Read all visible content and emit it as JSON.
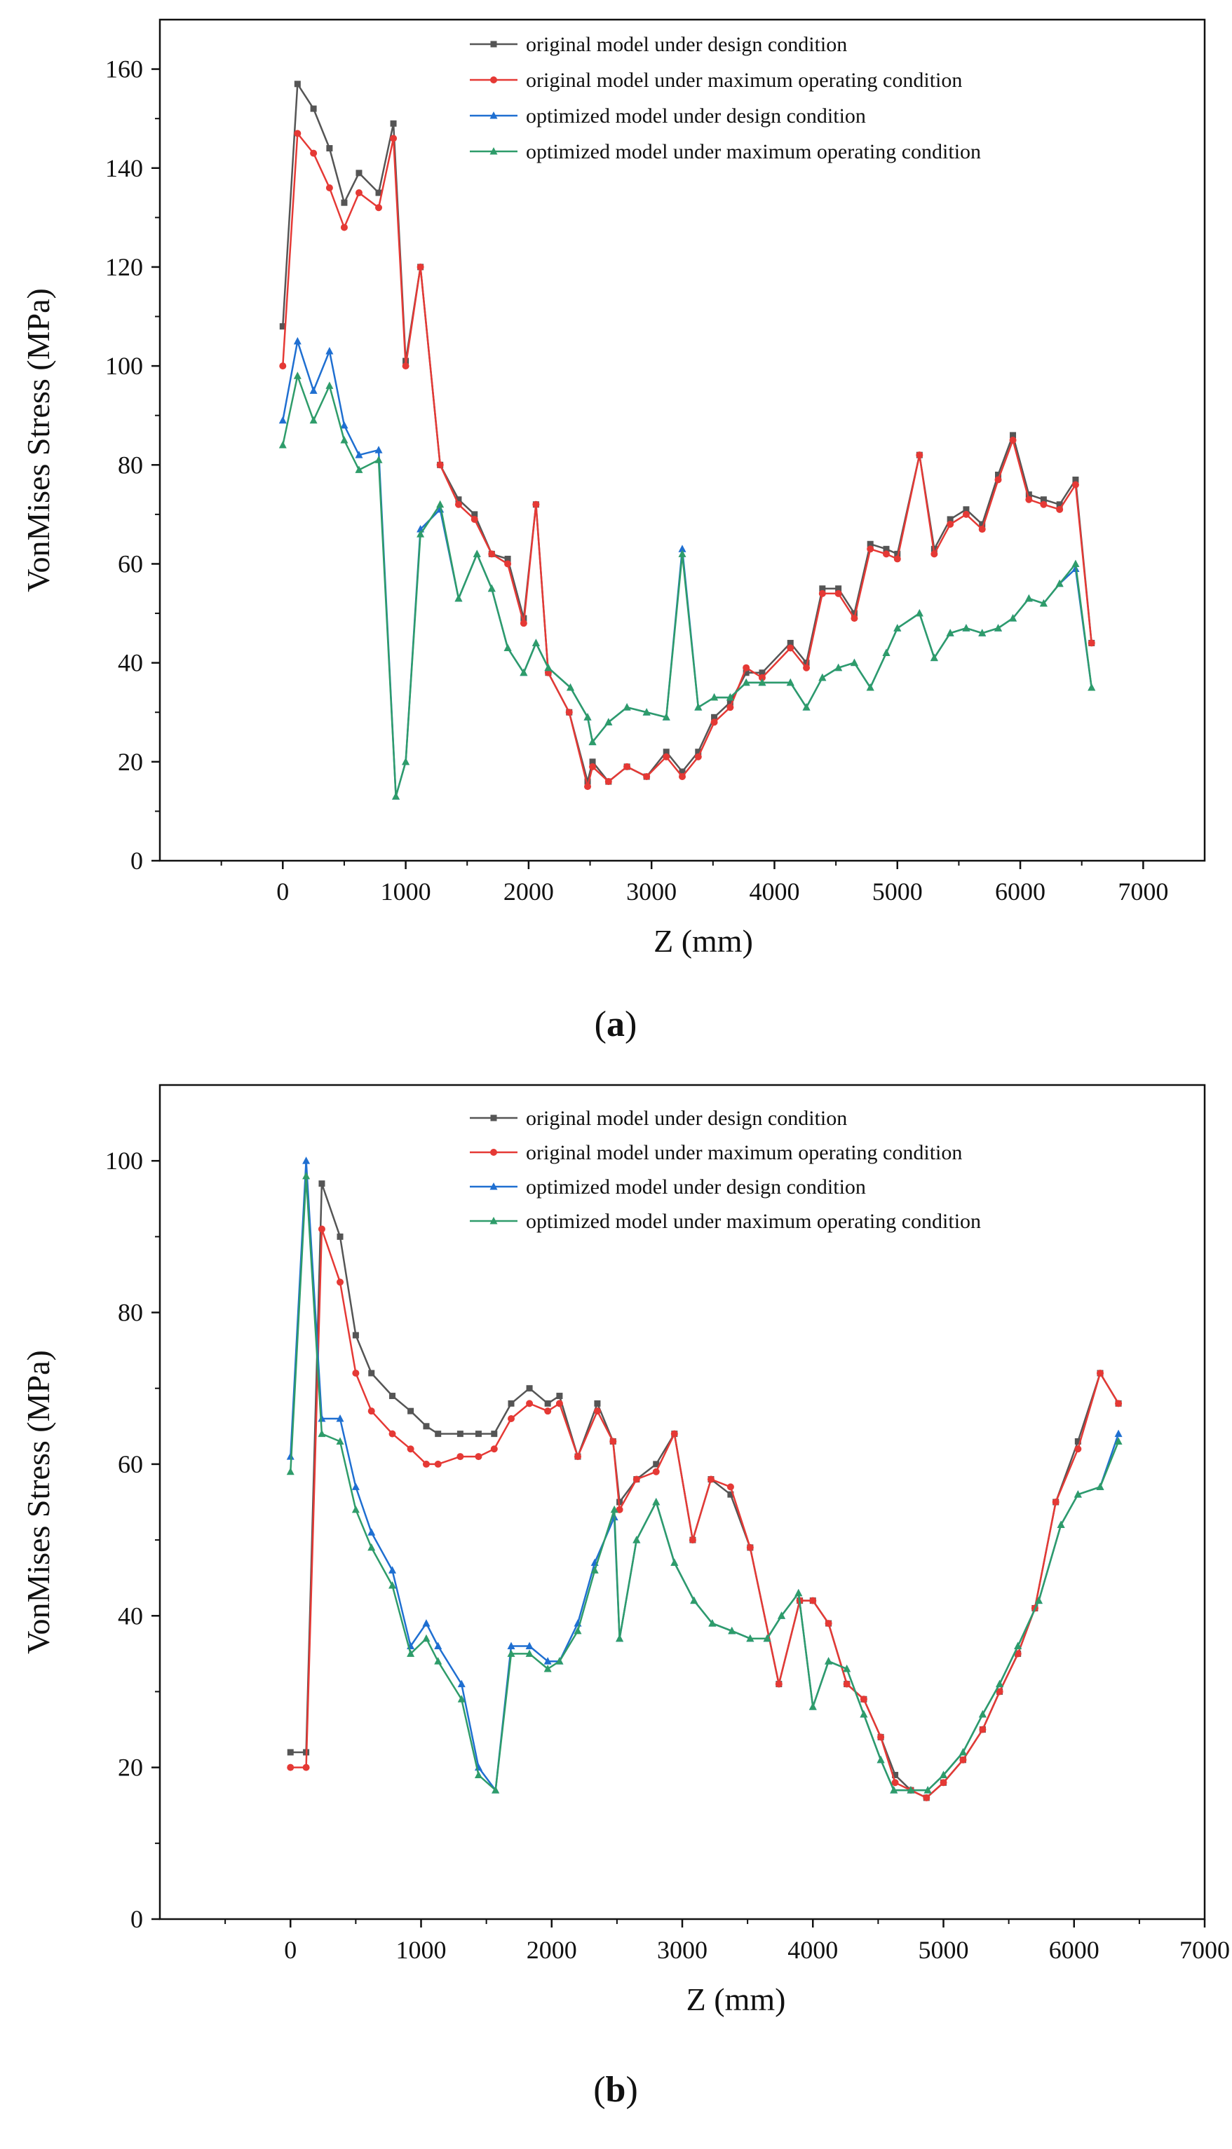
{
  "chart_data": [
    {
      "type": "line",
      "panel_label": "(a)",
      "xlabel": "Z (mm)",
      "ylabel": "VonMises Stress (MPa)",
      "xlim": [
        -1000,
        7500
      ],
      "ylim": [
        0,
        170
      ],
      "xticks": [
        0,
        1000,
        2000,
        3000,
        4000,
        5000,
        6000,
        7000
      ],
      "yticks": [
        0,
        20,
        40,
        60,
        80,
        100,
        120,
        140,
        160
      ],
      "legend_position": "top-right",
      "series": [
        {
          "name": "original model under design condition",
          "color": "#555555",
          "marker": "square",
          "x": [
            0,
            120,
            250,
            380,
            500,
            620,
            780,
            900,
            1000,
            1120,
            1280,
            1430,
            1560,
            1700,
            1830,
            1960,
            2060,
            2160,
            2330,
            2480,
            2520,
            2650,
            2800,
            2960,
            3120,
            3250,
            3380,
            3510,
            3640,
            3770,
            3900,
            4130,
            4260,
            4390,
            4520,
            4650,
            4780,
            4910,
            5000,
            5180,
            5300,
            5430,
            5560,
            5690,
            5820,
            5940,
            6070,
            6190,
            6320,
            6450,
            6580
          ],
          "values": [
            108,
            157,
            152,
            144,
            133,
            139,
            135,
            149,
            101,
            120,
            80,
            73,
            70,
            62,
            61,
            49,
            72,
            38,
            30,
            16,
            20,
            16,
            19,
            17,
            22,
            18,
            22,
            29,
            32,
            38,
            38,
            44,
            40,
            55,
            55,
            50,
            64,
            63,
            62,
            82,
            63,
            69,
            71,
            68,
            78,
            86,
            74,
            73,
            72,
            77,
            44
          ]
        },
        {
          "name": "original model under maximum operating condition",
          "color": "#e53935",
          "marker": "circle",
          "x": [
            0,
            120,
            250,
            380,
            500,
            620,
            780,
            900,
            1000,
            1120,
            1280,
            1430,
            1560,
            1700,
            1830,
            1960,
            2060,
            2160,
            2330,
            2480,
            2520,
            2650,
            2800,
            2960,
            3120,
            3250,
            3380,
            3510,
            3640,
            3770,
            3900,
            4130,
            4260,
            4390,
            4520,
            4650,
            4780,
            4910,
            5000,
            5180,
            5300,
            5430,
            5560,
            5690,
            5820,
            5940,
            6070,
            6190,
            6320,
            6450,
            6580
          ],
          "values": [
            100,
            147,
            143,
            136,
            128,
            135,
            132,
            146,
            100,
            120,
            80,
            72,
            69,
            62,
            60,
            48,
            72,
            38,
            30,
            15,
            19,
            16,
            19,
            17,
            21,
            17,
            21,
            28,
            31,
            39,
            37,
            43,
            39,
            54,
            54,
            49,
            63,
            62,
            61,
            82,
            62,
            68,
            70,
            67,
            77,
            85,
            73,
            72,
            71,
            76,
            44
          ]
        },
        {
          "name": "optimized model under design condition",
          "color": "#1f6fd1",
          "marker": "triangle",
          "x": [
            0,
            120,
            250,
            380,
            500,
            620,
            780,
            920,
            1000,
            1120,
            1280,
            1430,
            1580,
            1700,
            1830,
            1960,
            2060,
            2160,
            2340,
            2480,
            2520,
            2650,
            2800,
            2960,
            3120,
            3250,
            3380,
            3510,
            3640,
            3770,
            3900,
            4130,
            4260,
            4390,
            4520,
            4650,
            4780,
            4910,
            5000,
            5180,
            5300,
            5430,
            5560,
            5690,
            5820,
            5940,
            6070,
            6190,
            6320,
            6450,
            6580
          ],
          "values": [
            89,
            105,
            95,
            103,
            88,
            82,
            83,
            13,
            20,
            67,
            71,
            53,
            62,
            55,
            43,
            38,
            44,
            39,
            35,
            29,
            24,
            28,
            31,
            30,
            29,
            63,
            31,
            33,
            33,
            36,
            36,
            36,
            31,
            37,
            39,
            40,
            35,
            42,
            47,
            50,
            41,
            46,
            47,
            46,
            47,
            49,
            53,
            52,
            56,
            59,
            35
          ]
        },
        {
          "name": "optimized model under maximum operating condition",
          "color": "#2e9c6a",
          "marker": "triangle",
          "x": [
            0,
            120,
            250,
            380,
            500,
            620,
            780,
            920,
            1000,
            1120,
            1280,
            1430,
            1580,
            1700,
            1830,
            1960,
            2060,
            2160,
            2340,
            2480,
            2520,
            2650,
            2800,
            2960,
            3120,
            3250,
            3380,
            3510,
            3640,
            3770,
            3900,
            4130,
            4260,
            4390,
            4520,
            4650,
            4780,
            4910,
            5000,
            5180,
            5300,
            5430,
            5560,
            5690,
            5820,
            5940,
            6070,
            6190,
            6320,
            6450,
            6580
          ],
          "values": [
            84,
            98,
            89,
            96,
            85,
            79,
            81,
            13,
            20,
            66,
            72,
            53,
            62,
            55,
            43,
            38,
            44,
            39,
            35,
            29,
            24,
            28,
            31,
            30,
            29,
            62,
            31,
            33,
            33,
            36,
            36,
            36,
            31,
            37,
            39,
            40,
            35,
            42,
            47,
            50,
            41,
            46,
            47,
            46,
            47,
            49,
            53,
            52,
            56,
            60,
            35
          ]
        }
      ]
    },
    {
      "type": "line",
      "panel_label": "(b)",
      "xlabel": "Z (mm)",
      "ylabel": "VonMises Stress (MPa)",
      "xlim": [
        -1000,
        7000
      ],
      "ylim": [
        0,
        110
      ],
      "xticks": [
        0,
        1000,
        2000,
        3000,
        4000,
        5000,
        6000,
        7000
      ],
      "yticks": [
        0,
        20,
        40,
        60,
        80,
        100
      ],
      "legend_position": "top-right",
      "series": [
        {
          "name": "original model under design condition",
          "color": "#555555",
          "marker": "square",
          "x": [
            0,
            120,
            240,
            380,
            500,
            620,
            780,
            920,
            1040,
            1130,
            1300,
            1440,
            1560,
            1690,
            1830,
            1970,
            2060,
            2200,
            2350,
            2470,
            2520,
            2650,
            2800,
            2940,
            3080,
            3220,
            3370,
            3520,
            3740,
            3900,
            4000,
            4120,
            4260,
            4390,
            4520,
            4630,
            4750,
            4870,
            5000,
            5150,
            5300,
            5430,
            5570,
            5700,
            5860,
            6030,
            6200,
            6340
          ],
          "values": [
            22,
            22,
            97,
            90,
            77,
            72,
            69,
            67,
            65,
            64,
            64,
            64,
            64,
            68,
            70,
            68,
            69,
            61,
            68,
            63,
            55,
            58,
            60,
            64,
            50,
            58,
            56,
            49,
            31,
            42,
            42,
            39,
            31,
            29,
            24,
            19,
            17,
            16,
            18,
            21,
            25,
            30,
            35,
            41,
            55,
            63,
            72,
            68
          ]
        },
        {
          "name": "original model under maximum operating condition",
          "color": "#e53935",
          "marker": "circle",
          "x": [
            0,
            120,
            240,
            380,
            500,
            620,
            780,
            920,
            1040,
            1130,
            1300,
            1440,
            1560,
            1690,
            1830,
            1970,
            2060,
            2200,
            2350,
            2470,
            2520,
            2650,
            2800,
            2940,
            3080,
            3220,
            3370,
            3520,
            3740,
            3900,
            4000,
            4120,
            4260,
            4390,
            4520,
            4630,
            4750,
            4870,
            5000,
            5150,
            5300,
            5430,
            5570,
            5700,
            5860,
            6030,
            6200,
            6340
          ],
          "values": [
            20,
            20,
            91,
            84,
            72,
            67,
            64,
            62,
            60,
            60,
            61,
            61,
            62,
            66,
            68,
            67,
            68,
            61,
            67,
            63,
            54,
            58,
            59,
            64,
            50,
            58,
            57,
            49,
            31,
            42,
            42,
            39,
            31,
            29,
            24,
            18,
            17,
            16,
            18,
            21,
            25,
            30,
            35,
            41,
            55,
            62,
            72,
            68
          ]
        },
        {
          "name": "optimized model under design condition",
          "color": "#1f6fd1",
          "marker": "triangle",
          "x": [
            0,
            120,
            240,
            380,
            500,
            620,
            780,
            920,
            1040,
            1130,
            1310,
            1440,
            1570,
            1690,
            1830,
            1970,
            2060,
            2200,
            2330,
            2480,
            2520,
            2650,
            2800,
            2940,
            3090,
            3230,
            3380,
            3520,
            3650,
            3760,
            3890,
            4000,
            4120,
            4260,
            4390,
            4520,
            4620,
            4750,
            4880,
            5000,
            5150,
            5300,
            5430,
            5570,
            5730,
            5900,
            6030,
            6200,
            6340
          ],
          "values": [
            61,
            100,
            66,
            66,
            57,
            51,
            46,
            36,
            39,
            36,
            31,
            20,
            17,
            36,
            36,
            34,
            34,
            39,
            47,
            53,
            37,
            50,
            55,
            47,
            42,
            39,
            38,
            37,
            37,
            40,
            43,
            28,
            34,
            33,
            27,
            21,
            17,
            17,
            17,
            19,
            22,
            27,
            31,
            36,
            42,
            52,
            56,
            57,
            64
          ]
        },
        {
          "name": "optimized model under maximum operating condition",
          "color": "#2e9c6a",
          "marker": "triangle",
          "x": [
            0,
            120,
            240,
            380,
            500,
            620,
            780,
            920,
            1040,
            1130,
            1310,
            1440,
            1570,
            1690,
            1830,
            1970,
            2060,
            2200,
            2330,
            2480,
            2520,
            2650,
            2800,
            2940,
            3090,
            3230,
            3380,
            3520,
            3650,
            3760,
            3890,
            4000,
            4120,
            4260,
            4390,
            4520,
            4620,
            4750,
            4880,
            5000,
            5150,
            5300,
            5430,
            5570,
            5730,
            5900,
            6030,
            6200,
            6340
          ],
          "values": [
            59,
            98,
            64,
            63,
            54,
            49,
            44,
            35,
            37,
            34,
            29,
            19,
            17,
            35,
            35,
            33,
            34,
            38,
            46,
            54,
            37,
            50,
            55,
            47,
            42,
            39,
            38,
            37,
            37,
            40,
            43,
            28,
            34,
            33,
            27,
            21,
            17,
            17,
            17,
            19,
            22,
            27,
            31,
            36,
            42,
            52,
            56,
            57,
            63
          ]
        }
      ]
    }
  ]
}
